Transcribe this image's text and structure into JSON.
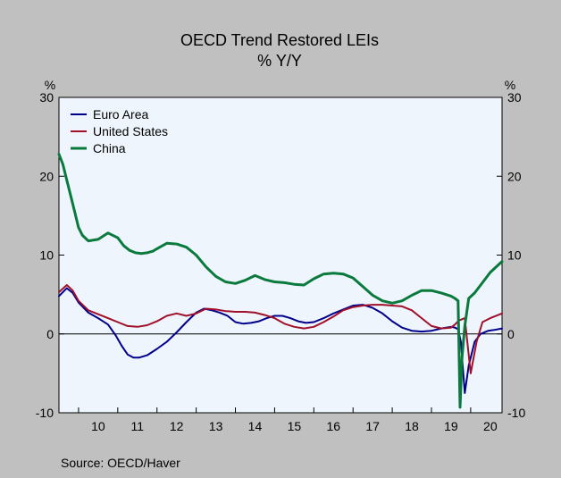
{
  "chart_data": {
    "type": "line",
    "title": "OECD Trend Restored LEIs",
    "subtitle": "% Y/Y",
    "ylabel_left": "%",
    "ylabel_right": "%",
    "source": "Source:  OECD/Haver",
    "ylim": [
      -10,
      30
    ],
    "yticks": [
      -10,
      0,
      10,
      20,
      30
    ],
    "xlim": [
      2009.5,
      2020.8
    ],
    "x_tick_labels": [
      "10",
      "11",
      "12",
      "13",
      "14",
      "15",
      "16",
      "17",
      "18",
      "19",
      "20"
    ],
    "legend_position": "top-left",
    "grid": false,
    "colors": {
      "background": "#c0c0c0",
      "plot_bg": "#eef5fd",
      "euro": "#00008b",
      "us": "#a0102a",
      "china": "#0a7a3c"
    },
    "series": [
      {
        "name": "Euro Area",
        "color": "#00008b",
        "x": [
          2009.5,
          2009.7,
          2009.85,
          2010.0,
          2010.25,
          2010.5,
          2010.75,
          2010.95,
          2011.1,
          2011.25,
          2011.4,
          2011.55,
          2011.75,
          2012.0,
          2012.25,
          2012.5,
          2012.75,
          2013.0,
          2013.2,
          2013.4,
          2013.6,
          2013.8,
          2014.0,
          2014.2,
          2014.4,
          2014.6,
          2014.8,
          2015.0,
          2015.2,
          2015.4,
          2015.6,
          2015.8,
          2016.0,
          2016.25,
          2016.5,
          2016.75,
          2017.0,
          2017.25,
          2017.5,
          2017.75,
          2018.0,
          2018.25,
          2018.5,
          2018.75,
          2019.0,
          2019.25,
          2019.5,
          2019.6,
          2019.68,
          2019.75,
          2019.85,
          2019.95,
          2020.1,
          2020.25,
          2020.45,
          2020.6,
          2020.8
        ],
        "values": [
          4.8,
          5.8,
          5.2,
          4.0,
          2.7,
          2.0,
          1.2,
          -0.2,
          -1.5,
          -2.6,
          -3.0,
          -3.0,
          -2.7,
          -1.9,
          -1.0,
          0.2,
          1.5,
          2.7,
          3.2,
          3.0,
          2.7,
          2.3,
          1.5,
          1.3,
          1.4,
          1.6,
          2.0,
          2.3,
          2.3,
          2.0,
          1.6,
          1.4,
          1.5,
          2.0,
          2.6,
          3.1,
          3.6,
          3.7,
          3.3,
          2.6,
          1.6,
          0.8,
          0.4,
          0.3,
          0.4,
          0.7,
          0.9,
          0.8,
          0.6,
          -1.0,
          -7.5,
          -4.0,
          -1.0,
          0.0,
          0.4,
          0.5,
          0.7
        ]
      },
      {
        "name": "United States",
        "color": "#a0102a",
        "x": [
          2009.5,
          2009.7,
          2009.85,
          2010.0,
          2010.25,
          2010.5,
          2010.75,
          2011.0,
          2011.25,
          2011.5,
          2011.75,
          2012.0,
          2012.25,
          2012.5,
          2012.75,
          2013.0,
          2013.25,
          2013.5,
          2013.75,
          2014.0,
          2014.25,
          2014.5,
          2014.75,
          2015.0,
          2015.25,
          2015.5,
          2015.75,
          2016.0,
          2016.25,
          2016.5,
          2016.75,
          2017.0,
          2017.25,
          2017.5,
          2017.75,
          2018.0,
          2018.25,
          2018.5,
          2018.75,
          2019.0,
          2019.25,
          2019.5,
          2019.6,
          2019.7,
          2019.85,
          2020.0,
          2020.15,
          2020.3,
          2020.5,
          2020.8
        ],
        "values": [
          5.3,
          6.2,
          5.5,
          4.2,
          3.0,
          2.5,
          2.0,
          1.5,
          1.0,
          0.9,
          1.1,
          1.6,
          2.3,
          2.6,
          2.3,
          2.6,
          3.2,
          3.1,
          2.9,
          2.8,
          2.8,
          2.7,
          2.4,
          2.0,
          1.3,
          0.9,
          0.7,
          0.9,
          1.5,
          2.2,
          3.0,
          3.4,
          3.6,
          3.7,
          3.7,
          3.6,
          3.5,
          3.0,
          2.0,
          1.0,
          0.7,
          0.8,
          1.2,
          1.7,
          2.0,
          -5.0,
          -1.0,
          1.5,
          2.0,
          2.6
        ]
      },
      {
        "name": "China",
        "color": "#0a7a3c",
        "x": [
          2009.5,
          2009.6,
          2009.75,
          2009.9,
          2010.0,
          2010.1,
          2010.25,
          2010.5,
          2010.75,
          2011.0,
          2011.15,
          2011.3,
          2011.45,
          2011.6,
          2011.75,
          2011.9,
          2012.0,
          2012.25,
          2012.5,
          2012.75,
          2013.0,
          2013.25,
          2013.5,
          2013.75,
          2014.0,
          2014.25,
          2014.5,
          2014.75,
          2015.0,
          2015.25,
          2015.5,
          2015.75,
          2016.0,
          2016.25,
          2016.5,
          2016.75,
          2017.0,
          2017.25,
          2017.5,
          2017.75,
          2018.0,
          2018.25,
          2018.5,
          2018.75,
          2019.0,
          2019.25,
          2019.5,
          2019.6,
          2019.68,
          2019.73,
          2019.78,
          2019.85,
          2019.95,
          2020.1,
          2020.3,
          2020.5,
          2020.8
        ],
        "values": [
          22.8,
          21.5,
          18.5,
          15.5,
          13.5,
          12.5,
          11.8,
          12.0,
          12.8,
          12.2,
          11.2,
          10.6,
          10.3,
          10.2,
          10.3,
          10.5,
          10.8,
          11.5,
          11.4,
          11.0,
          10.0,
          8.5,
          7.3,
          6.6,
          6.4,
          6.8,
          7.4,
          6.9,
          6.6,
          6.5,
          6.3,
          6.2,
          7.0,
          7.6,
          7.7,
          7.6,
          7.1,
          6.0,
          4.9,
          4.2,
          3.9,
          4.2,
          4.9,
          5.5,
          5.5,
          5.2,
          4.8,
          4.5,
          4.2,
          -9.3,
          -3.0,
          1.0,
          4.5,
          5.2,
          6.5,
          7.8,
          9.2
        ]
      }
    ]
  }
}
